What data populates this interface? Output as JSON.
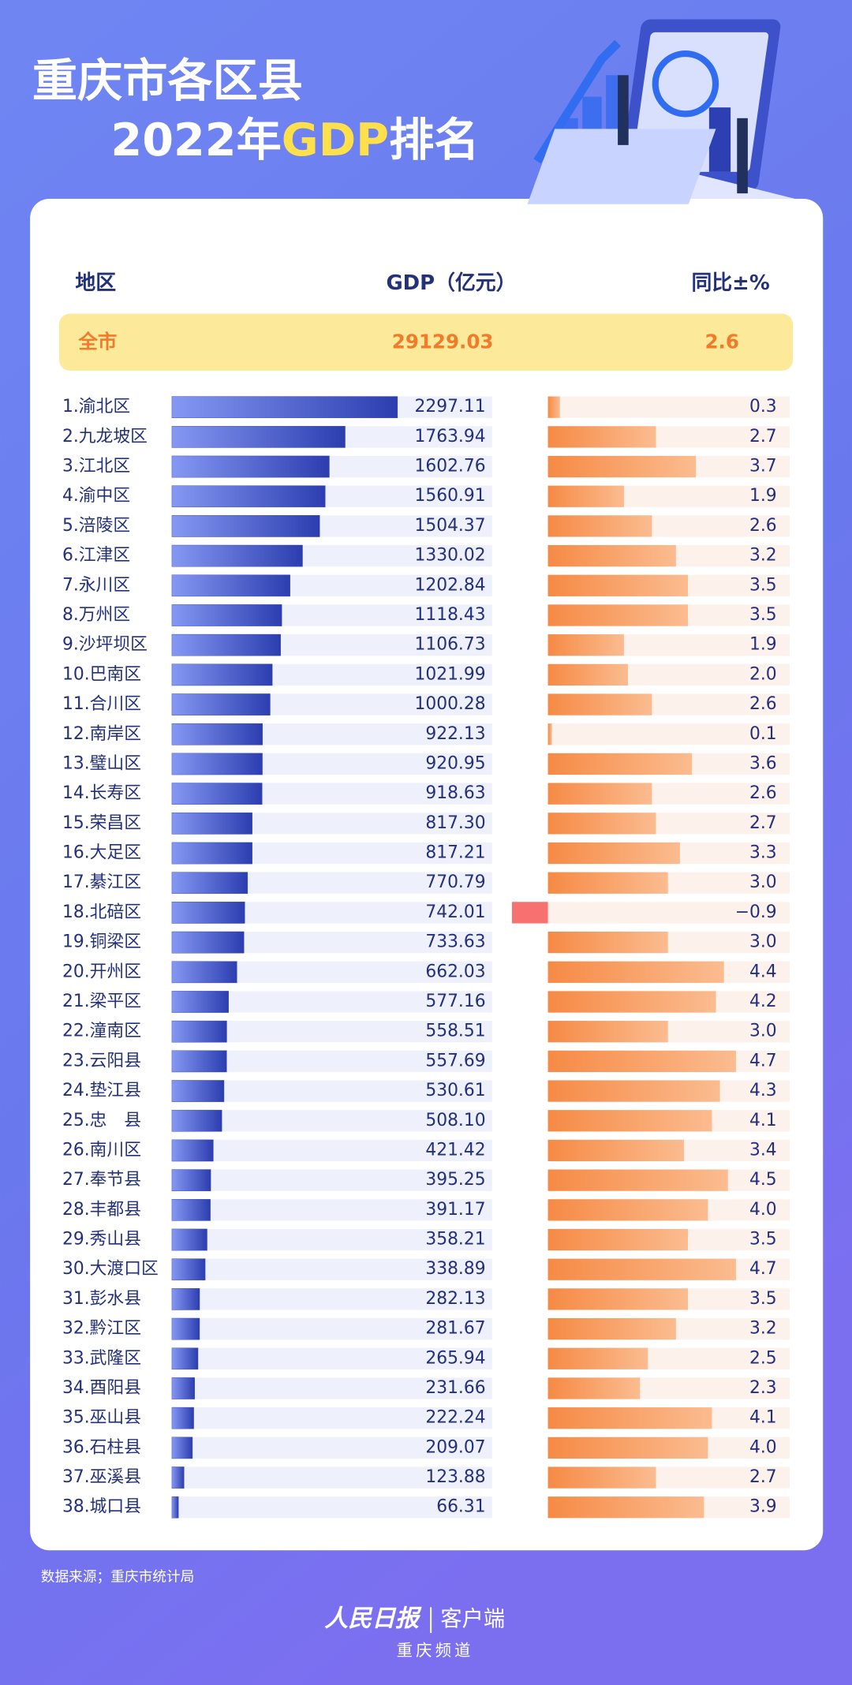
{
  "chart_data": {
    "type": "ranking",
    "title_parts": [
      "重庆市各区县",
      "2022年",
      "GDP",
      "排名"
    ],
    "category_label": "地区",
    "categories": [
      "1.渝北区",
      "2.九龙坡区",
      "3.江北区",
      "4.渝中区",
      "5.涪陵区",
      "6.江津区",
      "7.永川区",
      "8.万州区",
      "9.沙坪坝区",
      "10.巴南区",
      "11.合川区",
      "12.南岸区",
      "13.璧山区",
      "14.长寿区",
      "15.荣昌区",
      "16.大足区",
      "17.綦江区",
      "18.北碚区",
      "19.铜梁区",
      "20.开州区",
      "21.梁平区",
      "22.潼南区",
      "23.云阳县",
      "24.垫江县",
      "25.忠　县",
      "26.南川区",
      "27.奉节县",
      "28.丰都县",
      "29.秀山县",
      "30.大渡口区",
      "31.彭水县",
      "32.黔江区",
      "33.武隆区",
      "34.酉阳县",
      "35.巫山县",
      "36.石柱县",
      "37.巫溪县",
      "38.城口县"
    ],
    "series": [
      {
        "name": "GDP（亿元）",
        "color": "#3347b8",
        "values": [
          2297.11,
          1763.94,
          1602.76,
          1560.91,
          1504.37,
          1330.02,
          1202.84,
          1118.43,
          1106.73,
          1021.99,
          1000.28,
          922.13,
          920.95,
          918.63,
          817.3,
          817.21,
          770.79,
          742.01,
          733.63,
          662.03,
          577.16,
          558.51,
          557.69,
          530.61,
          508.1,
          421.42,
          395.25,
          391.17,
          358.21,
          338.89,
          282.13,
          281.67,
          265.94,
          231.66,
          222.24,
          209.07,
          123.88,
          66.31
        ],
        "value_labels": [
          "2297.11",
          "1763.94",
          "1602.76",
          "1560.91",
          "1504.37",
          "1330.02",
          "1202.84",
          "1118.43",
          "1106.73",
          "1021.99",
          "1000.28",
          "922.13",
          "920.95",
          "918.63",
          "817.30",
          "817.21",
          "770.79",
          "742.01",
          "733.63",
          "662.03",
          "577.16",
          "558.51",
          "557.69",
          "530.61",
          "508.10",
          "421.42",
          "395.25",
          "391.17",
          "358.21",
          "338.89",
          "282.13",
          "281.67",
          "265.94",
          "231.66",
          "222.24",
          "209.07",
          "123.88",
          "66.31"
        ]
      },
      {
        "name": "同比±%",
        "color": "#f5873f",
        "negative_color": "#f87171",
        "values": [
          0.3,
          2.7,
          3.7,
          1.9,
          2.6,
          3.2,
          3.5,
          3.5,
          1.9,
          2.0,
          2.6,
          0.1,
          3.6,
          2.6,
          2.7,
          3.3,
          3.0,
          -0.9,
          3.0,
          4.4,
          4.2,
          3.0,
          4.7,
          4.3,
          4.1,
          3.4,
          4.5,
          4.0,
          3.5,
          4.7,
          3.5,
          3.2,
          2.5,
          2.3,
          4.1,
          4.0,
          2.7,
          3.9
        ],
        "value_labels": [
          "0.3",
          "2.7",
          "3.7",
          "1.9",
          "2.6",
          "3.2",
          "3.5",
          "3.5",
          "1.9",
          "2.0",
          "2.6",
          "0.1",
          "3.6",
          "2.6",
          "2.7",
          "3.3",
          "3.0",
          "−0.9",
          "3.0",
          "4.4",
          "4.2",
          "3.0",
          "4.7",
          "4.3",
          "4.1",
          "3.4",
          "4.5",
          "4.0",
          "3.5",
          "4.7",
          "3.5",
          "3.2",
          "2.5",
          "2.3",
          "4.1",
          "4.0",
          "2.7",
          "3.9"
        ]
      }
    ],
    "total": {
      "label": "全市",
      "values": [
        29129.03,
        2.6
      ]
    },
    "source": "数据来源；重庆市统计局",
    "brand": "人民日报",
    "brand_sub": "客户端",
    "channel": "重庆频道"
  }
}
